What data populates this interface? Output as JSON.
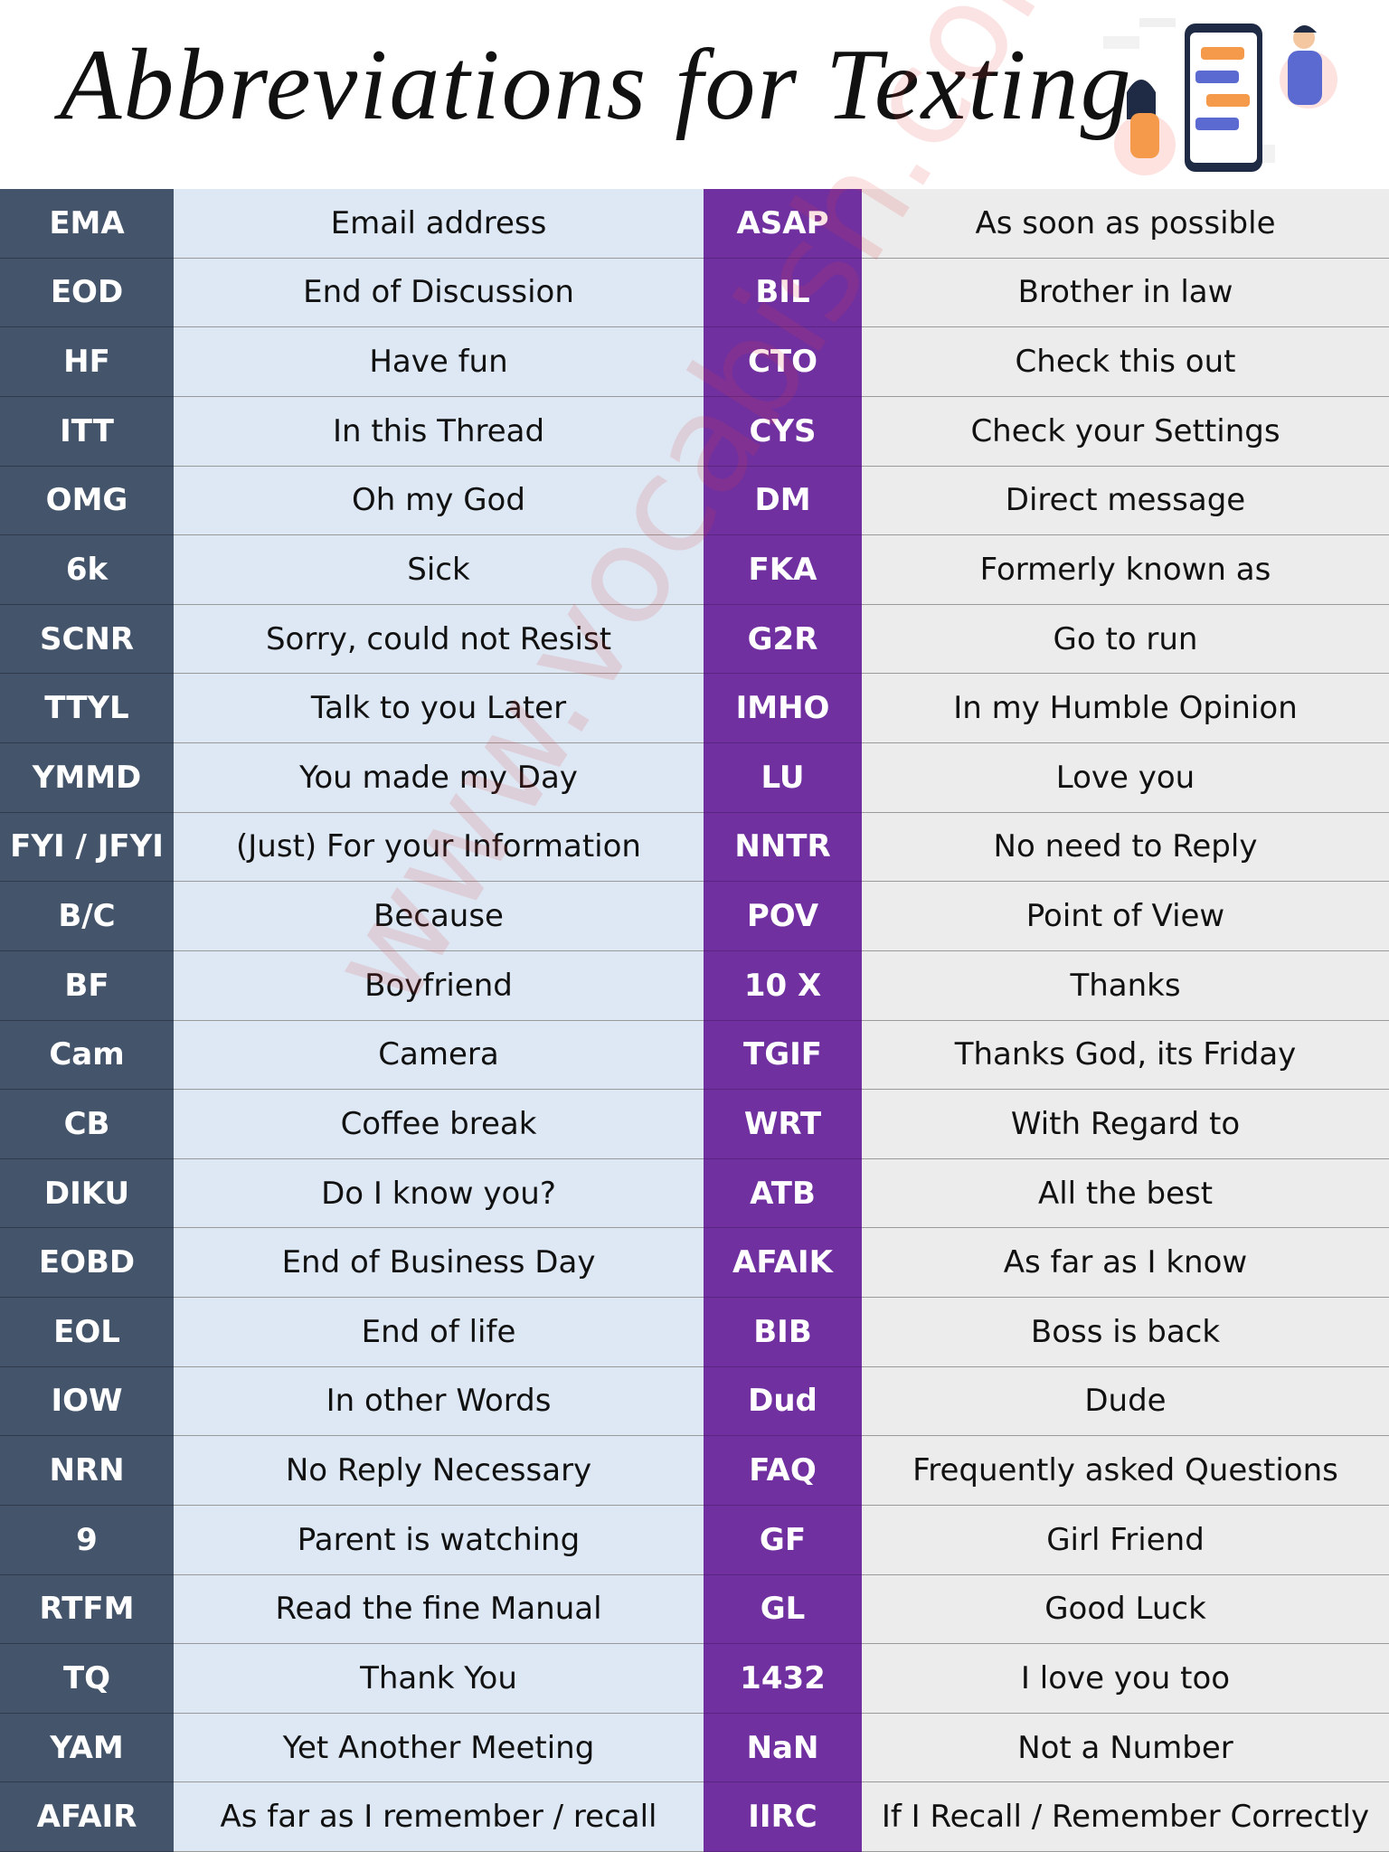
{
  "header": {
    "title": "Abbreviations for Texting"
  },
  "watermark": "www.vocabish.com",
  "table": {
    "rows": [
      [
        "EMA",
        "Email address",
        "ASAP",
        "As soon as possible"
      ],
      [
        "EOD",
        "End of Discussion",
        "BIL",
        "Brother in law"
      ],
      [
        "HF",
        "Have fun",
        "CTO",
        "Check this out"
      ],
      [
        "ITT",
        "In this Thread",
        "CYS",
        "Check your Settings"
      ],
      [
        "OMG",
        "Oh my God",
        "DM",
        "Direct message"
      ],
      [
        "6k",
        "Sick",
        "FKA",
        "Formerly known as"
      ],
      [
        "SCNR",
        "Sorry, could not Resist",
        "G2R",
        "Go to run"
      ],
      [
        "TTYL",
        "Talk to you Later",
        "IMHO",
        "In my Humble Opinion"
      ],
      [
        "YMMD",
        "You made my Day",
        "LU",
        "Love you"
      ],
      [
        "FYI / JFYI",
        "(Just) For your Information",
        "NNTR",
        "No need to Reply"
      ],
      [
        "B/C",
        "Because",
        "POV",
        "Point of View"
      ],
      [
        "BF",
        "Boyfriend",
        "10 X",
        "Thanks"
      ],
      [
        "Cam",
        "Camera",
        "TGIF",
        "Thanks God, its Friday"
      ],
      [
        "CB",
        "Coffee break",
        "WRT",
        "With Regard to"
      ],
      [
        "DIKU",
        "Do I know you?",
        "ATB",
        "All the best"
      ],
      [
        "EOBD",
        "End of Business Day",
        "AFAIK",
        "As far as I know"
      ],
      [
        "EOL",
        "End of life",
        "BIB",
        "Boss is back"
      ],
      [
        "IOW",
        "In other Words",
        "Dud",
        "Dude"
      ],
      [
        "NRN",
        "No Reply Necessary",
        "FAQ",
        "Frequently asked Questions"
      ],
      [
        "9",
        "Parent is watching",
        "GF",
        "Girl Friend"
      ],
      [
        "RTFM",
        "Read the fine Manual",
        "GL",
        "Good Luck"
      ],
      [
        "TQ",
        "Thank You",
        "1432",
        "I love you too"
      ],
      [
        "YAM",
        "Yet Another Meeting",
        "NaN",
        "Not a Number"
      ],
      [
        "AFAIR",
        "As far as I remember / recall",
        "IIRC",
        "If I Recall / Remember Correctly"
      ]
    ]
  }
}
